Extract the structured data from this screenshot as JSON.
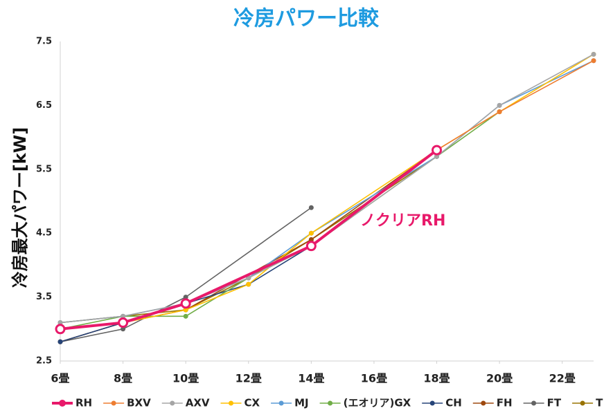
{
  "chart_data": {
    "type": "line",
    "title": "冷房パワー比較",
    "y_label": "冷房最大パワー[kW]",
    "annotation": "ノクリアRH",
    "xlim": [
      6,
      23
    ],
    "xticks": [
      {
        "value": 6,
        "label": "6畳"
      },
      {
        "value": 8,
        "label": "8畳"
      },
      {
        "value": 10,
        "label": "10畳"
      },
      {
        "value": 12,
        "label": "12畳"
      },
      {
        "value": 14,
        "label": "14畳"
      },
      {
        "value": 16,
        "label": "16畳"
      },
      {
        "value": 18,
        "label": "18畳"
      },
      {
        "value": 20,
        "label": "20畳"
      },
      {
        "value": 22,
        "label": "22畳"
      }
    ],
    "ylim": [
      2.5,
      7.5
    ],
    "yticks": [
      2.5,
      3.5,
      4.5,
      5.5,
      6.5,
      7.5
    ],
    "grid": false,
    "legend": "bottom",
    "series": [
      {
        "name": "RH",
        "color": "#e8196a",
        "x": [
          6,
          8,
          10,
          14,
          18
        ],
        "values": [
          3.0,
          3.1,
          3.4,
          4.3,
          5.8
        ]
      },
      {
        "name": "BXV",
        "color": "#ed7d31",
        "x": [
          6,
          8,
          10,
          14,
          18,
          20,
          23
        ],
        "values": [
          3.0,
          3.1,
          3.4,
          4.3,
          5.8,
          6.4,
          7.2
        ]
      },
      {
        "name": "AXV",
        "color": "#a5a5a5",
        "x": [
          6,
          8,
          10,
          12,
          14,
          18,
          20,
          23
        ],
        "values": [
          3.1,
          3.2,
          3.4,
          3.8,
          4.3,
          5.7,
          6.5,
          7.3
        ]
      },
      {
        "name": "CX",
        "color": "#ffc000",
        "x": [
          6,
          8,
          10,
          12,
          14,
          18,
          20,
          23
        ],
        "values": [
          3.0,
          3.1,
          3.3,
          3.7,
          4.5,
          5.8,
          6.4,
          7.3
        ]
      },
      {
        "name": "MJ",
        "color": "#5b9bd5",
        "x": [
          6,
          8,
          10,
          12,
          14,
          18,
          20,
          23
        ],
        "values": [
          3.1,
          3.2,
          3.4,
          3.8,
          4.5,
          5.7,
          6.5,
          7.2
        ]
      },
      {
        "name": "(エオリア)GX",
        "color": "#70ad47",
        "x": [
          6,
          8,
          10,
          12,
          14,
          18,
          20
        ],
        "values": [
          3.0,
          3.2,
          3.2,
          3.8,
          4.3,
          5.7,
          6.4
        ]
      },
      {
        "name": "CH",
        "color": "#264478",
        "x": [
          6,
          8,
          10,
          12,
          14,
          18
        ],
        "values": [
          2.8,
          3.1,
          3.4,
          3.7,
          4.3,
          5.8
        ]
      },
      {
        "name": "FH",
        "color": "#9e480e",
        "x": [
          6,
          8,
          10,
          14,
          18
        ],
        "values": [
          2.8,
          3.1,
          3.3,
          4.4,
          5.8
        ]
      },
      {
        "name": "FT",
        "color": "#636363",
        "x": [
          6,
          8,
          10,
          14
        ],
        "values": [
          2.8,
          3.0,
          3.5,
          4.9
        ]
      },
      {
        "name": "T",
        "color": "#997300",
        "x": [
          6,
          8,
          10,
          12,
          14,
          18
        ],
        "values": [
          3.1,
          3.2,
          3.3,
          3.8,
          4.4,
          5.7
        ]
      }
    ]
  }
}
